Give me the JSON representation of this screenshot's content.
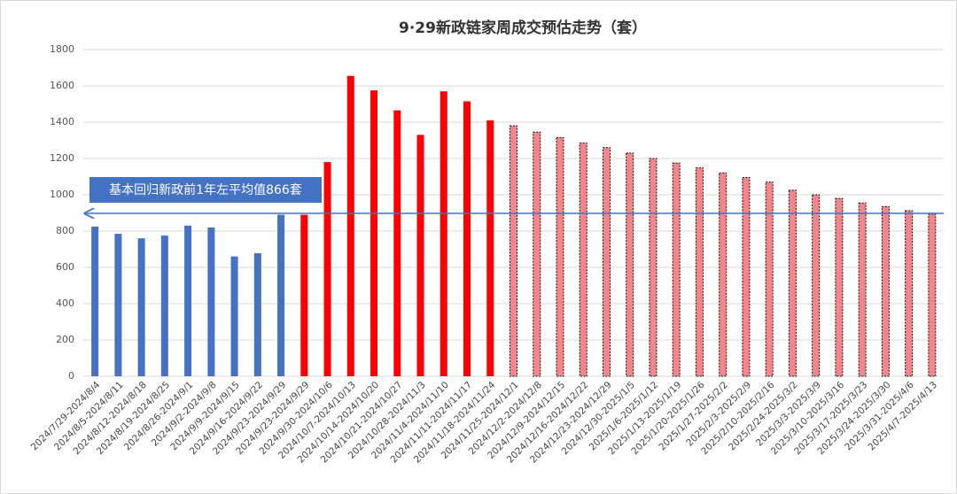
{
  "chart_data": {
    "type": "bar",
    "title": "9·29新政链家周成交预估走势（套）",
    "annotation": "基本回归新政前1年左平均值866套",
    "categories": [
      "2024/7/29-2024/8/4",
      "2024/8/5-2024/8/11",
      "2024/8/12-2024/8/18",
      "2024/8/19-2024/8/25",
      "2024/8/26-2024/9/1",
      "2024/9/2-2024/9/8",
      "2024/9/9-2024/9/15",
      "2024/9/16-2024/9/22",
      "2024/9/23-2024/9/29",
      "2024/9/23-2024/9/29",
      "2024/9/30-2024/10/6",
      "2024/10/7-2024/10/13",
      "2024/10/14-2024/10/20",
      "2024/10/21-2024/10/27",
      "2024/10/28-2024/11/3",
      "2024/11/4-2024/11/10",
      "2024/11/11-2024/11/17",
      "2024/11/18-2024/11/24",
      "2024/11/25-2024/12/1",
      "2024/12/2-2024/12/8",
      "2024/12/9-2024/12/15",
      "2024/12/16-2024/12/22",
      "2024/12/23-2024/12/29",
      "2024/12/30-2025/1/5",
      "2025/1/6-2025/1/12",
      "2025/1/13-2025/1/19",
      "2025/1/20-2025/1/26",
      "2025/1/27-2025/2/2",
      "2025/2/3-2025/2/9",
      "2025/2/10-2025/2/16",
      "2025/2/24-2025/3/2",
      "2025/3/3-2025/3/9",
      "2025/3/10-2025/3/16",
      "2025/3/17-2025/3/23",
      "2025/3/24-2025/3/30",
      "2025/3/31-2025/4/6",
      "2025/4/7-2025/4/13"
    ],
    "values": [
      825,
      785,
      760,
      775,
      830,
      820,
      660,
      678,
      890,
      890,
      1180,
      1655,
      1575,
      1465,
      1330,
      1570,
      1515,
      1410,
      1380,
      1345,
      1315,
      1285,
      1260,
      1230,
      1200,
      1175,
      1148,
      1120,
      1095,
      1070,
      1025,
      1000,
      980,
      955,
      935,
      912,
      893
    ],
    "colors": [
      "#4472c4",
      "#4472c4",
      "#4472c4",
      "#4472c4",
      "#4472c4",
      "#4472c4",
      "#4472c4",
      "#4472c4",
      "#4472c4",
      "#ff0000",
      "#ff0000",
      "#ff0000",
      "#ff0000",
      "#ff0000",
      "#ff0000",
      "#ff0000",
      "#ff0000",
      "#ff0000",
      "#f4858a",
      "#f4858a",
      "#f4858a",
      "#f4858a",
      "#f4858a",
      "#f4858a",
      "#f4858a",
      "#f4858a",
      "#f4858a",
      "#f4858a",
      "#f4858a",
      "#f4858a",
      "#f4858a",
      "#f4858a",
      "#f4858a",
      "#f4858a",
      "#f4858a",
      "#f4858a",
      "#f4858a"
    ],
    "dashed_edge": [
      false,
      false,
      false,
      false,
      false,
      false,
      false,
      false,
      false,
      false,
      false,
      false,
      false,
      false,
      false,
      false,
      false,
      false,
      true,
      true,
      true,
      true,
      true,
      true,
      true,
      true,
      true,
      true,
      true,
      true,
      true,
      true,
      true,
      true,
      true,
      true,
      true
    ],
    "ylim": [
      0,
      1800
    ],
    "yticks": [
      0,
      200,
      400,
      600,
      800,
      1000,
      1200,
      1400,
      1600,
      1800
    ],
    "grid": true
  }
}
